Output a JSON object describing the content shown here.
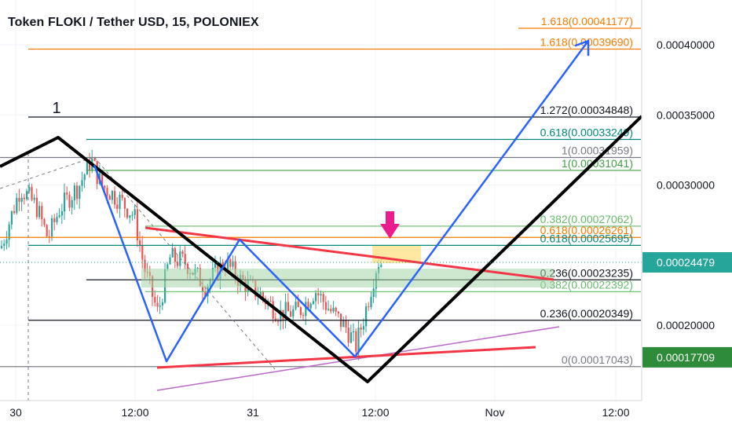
{
  "header": {
    "title": "Token FLOKI / Tether USD, 15, POLONIEX"
  },
  "chart_data": {
    "type": "candlestick",
    "ylim": [
      0.000145,
      0.00043
    ],
    "y_ticks": [
      {
        "value": 0.0002,
        "label": "0.00020000"
      },
      {
        "value": 0.0003,
        "label": "0.00030000"
      },
      {
        "value": 0.00035,
        "label": "0.00035000"
      },
      {
        "value": 0.0004,
        "label": "0.00040000"
      }
    ],
    "x_ticks": [
      "30",
      "12:00",
      "31",
      "12:00",
      "Nov",
      "12:00"
    ],
    "price_tags": [
      {
        "value": 0.00024479,
        "label": "0.00024479",
        "color": "#26a69a"
      },
      {
        "value": 0.00017709,
        "label": "0.00017709",
        "color": "#2e8b3a"
      }
    ],
    "wave_label": "1",
    "fib_levels": [
      {
        "text": "1.618(0.00041177)",
        "value": 0.00041177,
        "color": "#f57c00"
      },
      {
        "text": "1.618(0.00039690)",
        "value": 0.0003969,
        "color": "#f57c00"
      },
      {
        "text": "1.272(0.00034848)",
        "value": 0.00034848,
        "color": "#131722"
      },
      {
        "text": "0.618(0.00033249)",
        "value": 0.00033249,
        "color": "#00897b"
      },
      {
        "text": "1(0.00031959)",
        "value": 0.00031959,
        "color": "#787b86"
      },
      {
        "text": "1(0.00031041)",
        "value": 0.00031041,
        "color": "#43a047"
      },
      {
        "text": "0.382(0.00027062)",
        "value": 0.00027062,
        "color": "#66bb6a"
      },
      {
        "text": "0.618(0.00026261)",
        "value": 0.00026261,
        "color": "#f57c00"
      },
      {
        "text": "0.618(0.00025695)",
        "value": 0.00025695,
        "color": "#00897b"
      },
      {
        "text": "0.236(0.00023235)",
        "value": 0.00023235,
        "color": "#131722"
      },
      {
        "text": "0.382(0.00022392)",
        "value": 0.00022392,
        "color": "#66bb6a"
      },
      {
        "text": "0.236(0.00020349)",
        "value": 0.00020349,
        "color": "#131722"
      },
      {
        "text": "0(0.00017043)",
        "value": 0.00017043,
        "color": "#787b86"
      }
    ],
    "colors": {
      "up": "#26a69a",
      "down": "#ef5350",
      "blue_path": "#2962ff",
      "black_path": "#000000",
      "red_lines": "#f23645",
      "purple_line": "#ba68c8",
      "arrow": "#e91e8c",
      "highlight": "#ffe082",
      "grid": "#f0f3fa"
    }
  }
}
